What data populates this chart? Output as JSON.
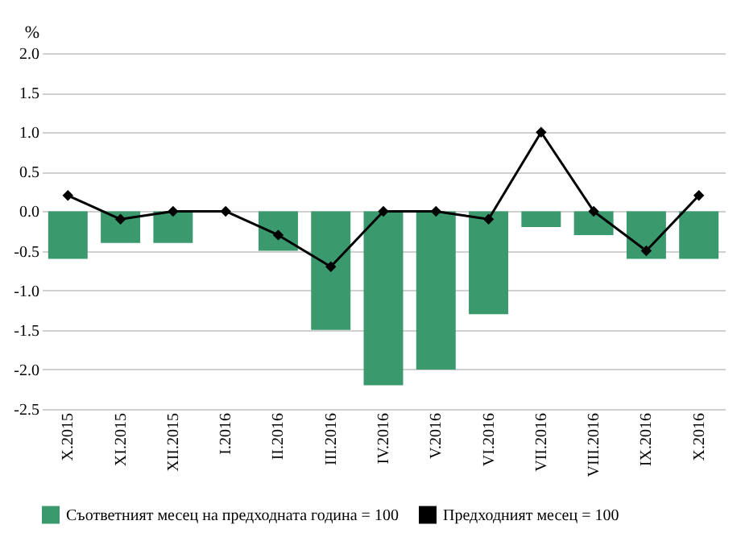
{
  "chart_data": {
    "type": "bar",
    "ylabel": "%",
    "categories": [
      "X.2015",
      "XI.2015",
      "XII.2015",
      "I.2016",
      "II.2016",
      "III.2016",
      "IV.2016",
      "V.2016",
      "VI.2016",
      "VII.2016",
      "VIII.2016",
      "IX.2016",
      "X.2016"
    ],
    "series": [
      {
        "name": "Съответният месец на предходната година = 100",
        "color": "#3a9a6e",
        "values": [
          -0.6,
          -0.4,
          -0.4,
          0.0,
          -0.5,
          -1.5,
          -2.2,
          -2.0,
          -1.3,
          -0.2,
          -0.3,
          -0.6,
          -0.6
        ]
      },
      {
        "name": "Предходният месец = 100",
        "type": "line",
        "color": "#000000",
        "marker": "diamond",
        "values": [
          0.2,
          -0.1,
          0.0,
          0.0,
          -0.3,
          -0.7,
          0.0,
          0.0,
          -0.1,
          1.0,
          0.0,
          -0.5,
          0.2
        ]
      }
    ],
    "ylim": [
      -2.5,
      2.0
    ],
    "yticks": [
      {
        "value": -2.5,
        "label": "-2.5"
      },
      {
        "value": -2.0,
        "label": "-2.0"
      },
      {
        "value": -1.5,
        "label": "-1.5"
      },
      {
        "value": -1.0,
        "label": "-1.0"
      },
      {
        "value": -0.5,
        "label": "-0.5"
      },
      {
        "value": 0,
        "label": "0.0"
      },
      {
        "value": 0.5,
        "label": "0.5"
      },
      {
        "value": 1.0,
        "label": "1.0"
      },
      {
        "value": 1.5,
        "label": "1.5"
      },
      {
        "value": 2.0,
        "label": "2.0"
      }
    ],
    "grid": "y",
    "legend": "bottom"
  }
}
